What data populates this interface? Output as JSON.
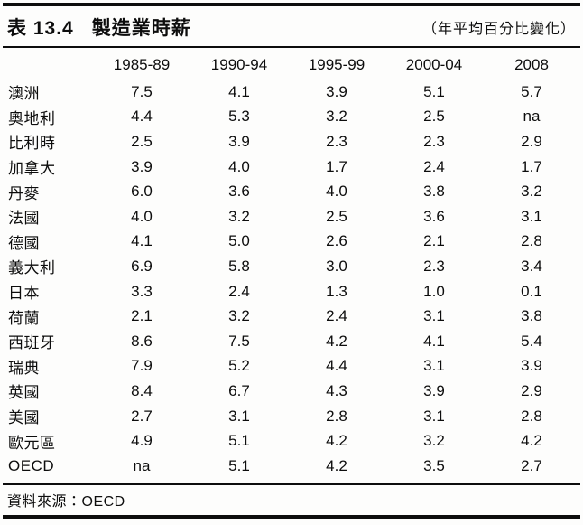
{
  "page": {
    "table_label": "表 13.4",
    "table_title": "製造業時薪",
    "unit_note": "（年平均百分比變化）",
    "source_note": "資料來源：OECD"
  },
  "chart_data": {
    "type": "table",
    "title": "表 13.4 製造業時薪（年平均百分比變化）",
    "columns": [
      "1985-89",
      "1990-94",
      "1995-99",
      "2000-04",
      "2008"
    ],
    "rows": [
      {
        "label": "澳洲",
        "values": [
          "7.5",
          "4.1",
          "3.9",
          "5.1",
          "5.7"
        ]
      },
      {
        "label": "奧地利",
        "values": [
          "4.4",
          "5.3",
          "3.2",
          "2.5",
          "na"
        ]
      },
      {
        "label": "比利時",
        "values": [
          "2.5",
          "3.9",
          "2.3",
          "2.3",
          "2.9"
        ]
      },
      {
        "label": "加拿大",
        "values": [
          "3.9",
          "4.0",
          "1.7",
          "2.4",
          "1.7"
        ]
      },
      {
        "label": "丹麥",
        "values": [
          "6.0",
          "3.6",
          "4.0",
          "3.8",
          "3.2"
        ]
      },
      {
        "label": "法國",
        "values": [
          "4.0",
          "3.2",
          "2.5",
          "3.6",
          "3.1"
        ]
      },
      {
        "label": "德國",
        "values": [
          "4.1",
          "5.0",
          "2.6",
          "2.1",
          "2.8"
        ]
      },
      {
        "label": "義大利",
        "values": [
          "6.9",
          "5.8",
          "3.0",
          "2.3",
          "3.4"
        ]
      },
      {
        "label": "日本",
        "values": [
          "3.3",
          "2.4",
          "1.3",
          "1.0",
          "0.1"
        ]
      },
      {
        "label": "荷蘭",
        "values": [
          "2.1",
          "3.2",
          "2.4",
          "3.1",
          "3.8"
        ]
      },
      {
        "label": "西班牙",
        "values": [
          "8.6",
          "7.5",
          "4.2",
          "4.1",
          "5.4"
        ]
      },
      {
        "label": "瑞典",
        "values": [
          "7.9",
          "5.2",
          "4.4",
          "3.1",
          "3.9"
        ]
      },
      {
        "label": "英國",
        "values": [
          "8.4",
          "6.7",
          "4.3",
          "3.9",
          "2.9"
        ]
      },
      {
        "label": "美國",
        "values": [
          "2.7",
          "3.1",
          "2.8",
          "3.1",
          "2.8"
        ]
      },
      {
        "label": "歐元區",
        "values": [
          "4.9",
          "5.1",
          "4.2",
          "3.2",
          "4.2"
        ]
      },
      {
        "label": "OECD",
        "values": [
          "na",
          "5.1",
          "4.2",
          "3.5",
          "2.7"
        ]
      }
    ],
    "source": "資料來源：OECD",
    "layout": {
      "header_row": true,
      "value_alignment": "center",
      "grid": "off"
    }
  },
  "colors": {
    "text": "#0d0d0d",
    "rule": "#0d0d0d",
    "background": "#fdfdfc"
  }
}
